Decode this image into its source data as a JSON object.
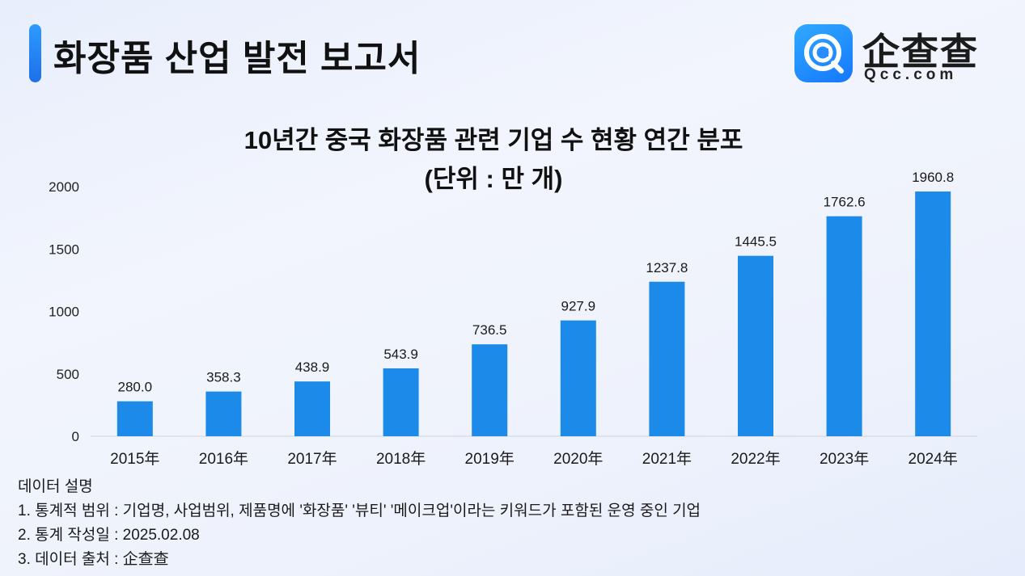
{
  "header": {
    "title": "화장품 산업 발전 보고서",
    "logo": {
      "text": "企查查",
      "sub": "Qcc.com",
      "icon": "qcc-logo-icon",
      "color": "#1677ff"
    }
  },
  "chart_data": {
    "type": "bar",
    "title": "10년간 중국 화장품 관련 기업 수 현황 연간 분포",
    "subtitle": "(단위 : 만 개)",
    "categories": [
      "2015年",
      "2016年",
      "2017年",
      "2018年",
      "2019年",
      "2020年",
      "2021年",
      "2022年",
      "2023年",
      "2024年"
    ],
    "values": [
      280.0,
      358.3,
      438.9,
      543.9,
      736.5,
      927.9,
      1237.8,
      1445.5,
      1762.6,
      1960.8
    ],
    "value_labels": [
      "280.0",
      "358.3",
      "438.9",
      "543.9",
      "736.5",
      "927.9",
      "1237.8",
      "1445.5",
      "1762.6",
      "1960.8"
    ],
    "yticks": [
      "0",
      "500",
      "1000",
      "1500",
      "2000"
    ],
    "ylim": [
      0,
      2000
    ],
    "xlabel": "",
    "ylabel": "",
    "grid": false,
    "color": "#1b8ae8"
  },
  "notes": {
    "heading": "데이터 설명",
    "items": [
      "1. 통계적 범위 : 기업명, 사업범위, 제품명에 '화장품' '뷰티' '메이크업'이라는 키워드가 포함된 운영 중인 기업",
      "2. 통계 작성일 : 2025.02.08",
      "3. 데이터 출처 : 企查查"
    ]
  }
}
